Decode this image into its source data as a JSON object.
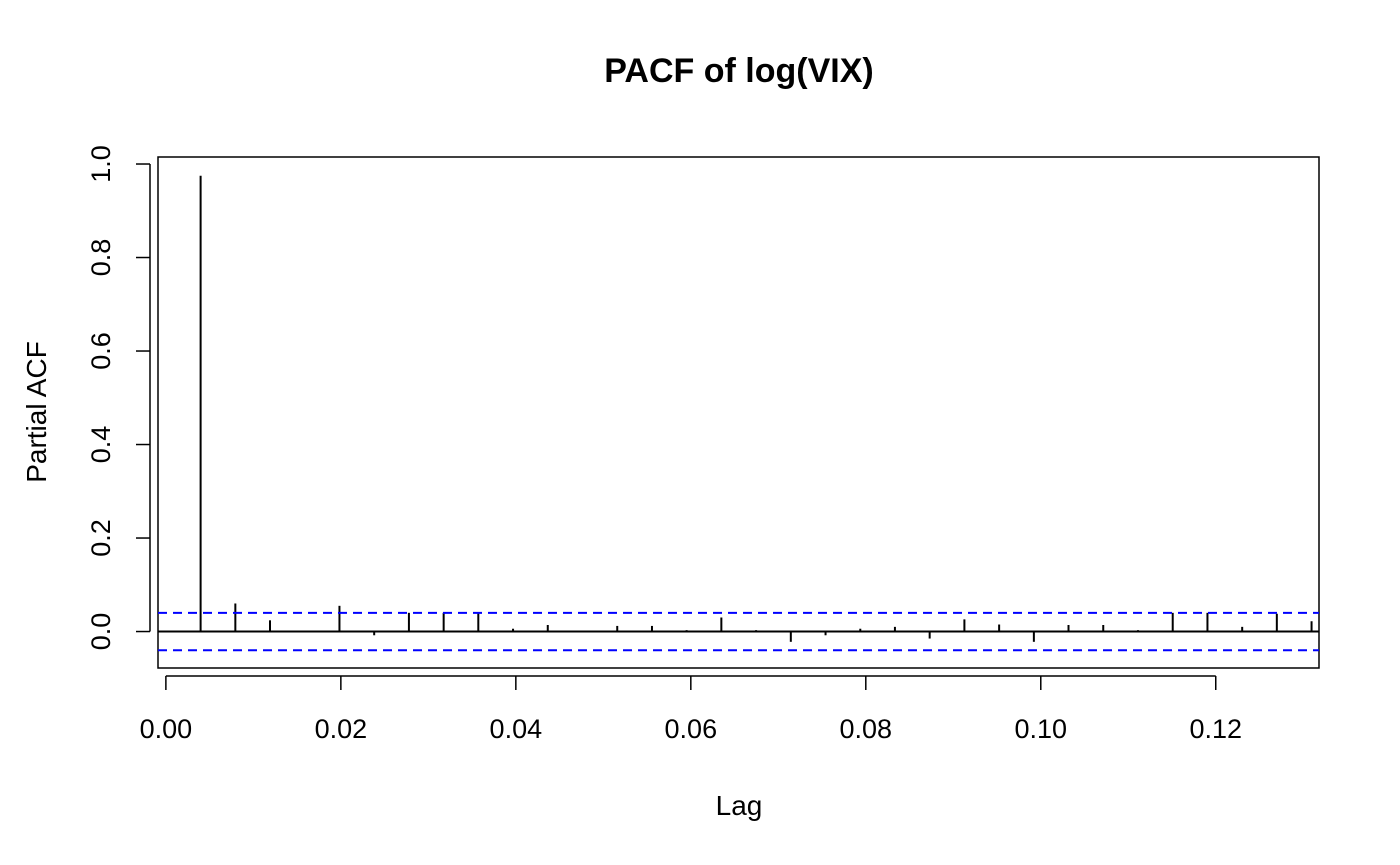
{
  "chart_data": {
    "type": "bar",
    "title": "PACF of log(VIX)",
    "xlabel": "Lag",
    "ylabel": "Partial ACF",
    "xlim": [
      -0.0009,
      0.1318
    ],
    "ylim": [
      -0.078,
      1.015
    ],
    "xticks": [
      0.0,
      0.02,
      0.04,
      0.06,
      0.08,
      0.1,
      0.12
    ],
    "xtick_labels": [
      "0.00",
      "0.02",
      "0.04",
      "0.06",
      "0.08",
      "0.10",
      "0.12"
    ],
    "yticks": [
      0.0,
      0.2,
      0.4,
      0.6,
      0.8,
      1.0
    ],
    "ytick_labels": [
      "0.0",
      "0.2",
      "0.4",
      "0.6",
      "0.8",
      "1.0"
    ],
    "confidence_bound": 0.04,
    "zero_line": true,
    "grid": false,
    "colors": {
      "bars": "#000000",
      "confidence_lines": "#0000ff"
    },
    "lags": [
      0.00397,
      0.00794,
      0.0119,
      0.01587,
      0.01984,
      0.02381,
      0.02778,
      0.03175,
      0.03571,
      0.03968,
      0.04365,
      0.04762,
      0.05159,
      0.05556,
      0.05952,
      0.06349,
      0.06746,
      0.07143,
      0.0754,
      0.07937,
      0.08333,
      0.0873,
      0.09127,
      0.09524,
      0.09921,
      0.10317,
      0.10714,
      0.11111,
      0.11508,
      0.11905,
      0.12302,
      0.12698,
      0.13095
    ],
    "values": [
      0.975,
      0.06,
      0.024,
      0.002,
      0.055,
      -0.008,
      0.04,
      0.04,
      0.04,
      0.006,
      0.014,
      0.002,
      0.012,
      0.012,
      0.003,
      0.03,
      0.003,
      -0.022,
      -0.008,
      0.006,
      0.01,
      -0.015,
      0.026,
      0.015,
      -0.022,
      0.014,
      0.014,
      0.003,
      0.04,
      0.04,
      0.01,
      0.038,
      0.022
    ]
  }
}
